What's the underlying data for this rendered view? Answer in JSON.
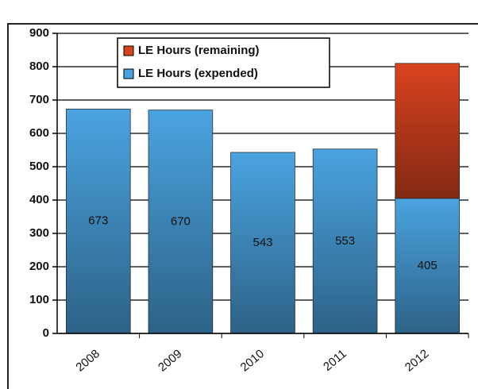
{
  "chart_data": {
    "type": "stacked_bar",
    "categories": [
      "2008",
      "2009",
      "2010",
      "2011",
      "2012"
    ],
    "series": [
      {
        "name": "LE Hours (expended)",
        "color": "#4aa3e0",
        "values": [
          673,
          670,
          543,
          553,
          405
        ]
      },
      {
        "name": "LE Hours (remaining)",
        "color": "#d9431f",
        "values": [
          null,
          null,
          null,
          null,
          405
        ]
      }
    ],
    "ylim": [
      0,
      900
    ],
    "yticks": [
      0,
      100,
      200,
      300,
      400,
      500,
      600,
      700,
      800,
      900
    ],
    "grid": true,
    "legend": "top"
  }
}
